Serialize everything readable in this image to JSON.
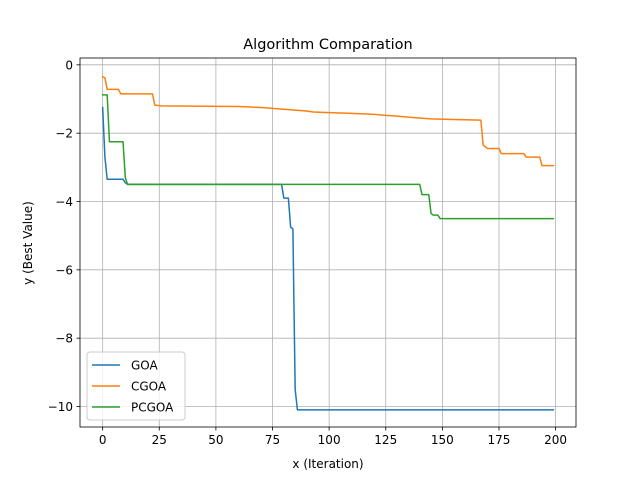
{
  "chart_data": {
    "type": "line",
    "title": "Algorithm Comparation",
    "xlabel": "x (Iteration)",
    "ylabel": "y (Best Value)",
    "xlim": [
      -10,
      209
    ],
    "ylim": [
      -10.6,
      0.2
    ],
    "x_ticks": [
      0,
      25,
      50,
      75,
      100,
      125,
      150,
      175,
      200
    ],
    "x_tick_labels": [
      "0",
      "25",
      "50",
      "75",
      "100",
      "125",
      "150",
      "175",
      "200"
    ],
    "y_ticks": [
      0,
      -2,
      -4,
      -6,
      -8,
      -10
    ],
    "y_tick_labels": [
      "0",
      "−2",
      "−4",
      "−6",
      "−8",
      "−10"
    ],
    "grid": true,
    "legend": "lower-left",
    "series": [
      {
        "name": "GOA",
        "color": "#1f77b4",
        "points": [
          [
            0,
            -1.25
          ],
          [
            1,
            -2.7
          ],
          [
            2,
            -3.35
          ],
          [
            9,
            -3.35
          ],
          [
            10,
            -3.45
          ],
          [
            11,
            -3.5
          ],
          [
            79,
            -3.5
          ],
          [
            80,
            -3.9
          ],
          [
            82,
            -3.9
          ],
          [
            83,
            -4.75
          ],
          [
            84,
            -4.8
          ],
          [
            85,
            -9.5
          ],
          [
            86,
            -10.1
          ],
          [
            199,
            -10.1
          ]
        ]
      },
      {
        "name": "CGOA",
        "color": "#ff7f0e",
        "points": [
          [
            0,
            -0.35
          ],
          [
            1,
            -0.38
          ],
          [
            2,
            -0.72
          ],
          [
            7,
            -0.72
          ],
          [
            8,
            -0.85
          ],
          [
            22,
            -0.85
          ],
          [
            23,
            -1.18
          ],
          [
            26,
            -1.2
          ],
          [
            60,
            -1.22
          ],
          [
            70,
            -1.25
          ],
          [
            80,
            -1.3
          ],
          [
            90,
            -1.35
          ],
          [
            93,
            -1.38
          ],
          [
            100,
            -1.4
          ],
          [
            110,
            -1.42
          ],
          [
            120,
            -1.45
          ],
          [
            125,
            -1.48
          ],
          [
            130,
            -1.5
          ],
          [
            138,
            -1.55
          ],
          [
            145,
            -1.58
          ],
          [
            155,
            -1.6
          ],
          [
            167,
            -1.62
          ],
          [
            168,
            -2.35
          ],
          [
            170,
            -2.45
          ],
          [
            175,
            -2.45
          ],
          [
            176,
            -2.6
          ],
          [
            186,
            -2.6
          ],
          [
            187,
            -2.7
          ],
          [
            193,
            -2.7
          ],
          [
            194,
            -2.95
          ],
          [
            199,
            -2.95
          ]
        ]
      },
      {
        "name": "PCGOA",
        "color": "#2ca02c",
        "points": [
          [
            0,
            -0.88
          ],
          [
            2,
            -0.88
          ],
          [
            3,
            -2.25
          ],
          [
            9,
            -2.25
          ],
          [
            10,
            -3.3
          ],
          [
            11,
            -3.5
          ],
          [
            140,
            -3.5
          ],
          [
            141,
            -3.8
          ],
          [
            144,
            -3.8
          ],
          [
            145,
            -4.35
          ],
          [
            146,
            -4.4
          ],
          [
            148,
            -4.4
          ],
          [
            149,
            -4.5
          ],
          [
            199,
            -4.5
          ]
        ]
      }
    ]
  }
}
